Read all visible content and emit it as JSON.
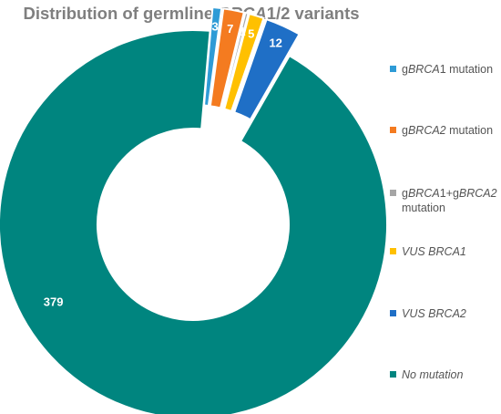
{
  "chart_data": {
    "type": "pie",
    "title": "Distribution of germline BRCA1/2 variants",
    "title_parts": [
      {
        "text": "Distribution of germline ",
        "italic": false
      },
      {
        "text": "BRCA",
        "italic": true
      },
      {
        "text": "1/2 variants",
        "italic": false
      }
    ],
    "style": "donut",
    "legend_position": "right",
    "series": [
      {
        "label": "gBRCA1 mutation",
        "value": 3,
        "color": "#2e9bd6",
        "exploded": true,
        "label_parts": [
          {
            "text": "g",
            "italic": false
          },
          {
            "text": "BRCA",
            "italic": true
          },
          {
            "text": "1 mutation",
            "italic": false
          }
        ]
      },
      {
        "label": "gBRCA2 mutation",
        "value": 7,
        "color": "#f47b20",
        "exploded": true,
        "label_parts": [
          {
            "text": "g",
            "italic": false
          },
          {
            "text": "BRCA2",
            "italic": true
          },
          {
            "text": " mutation",
            "italic": false
          }
        ]
      },
      {
        "label": "gBRCA1+gBRCA2 mutation",
        "value": 1,
        "color": "#a5a5a5",
        "exploded": true,
        "label_parts": [
          {
            "text": "g",
            "italic": false
          },
          {
            "text": "BRCA",
            "italic": true
          },
          {
            "text": "1+g",
            "italic": false
          },
          {
            "text": "BRCA2",
            "italic": true
          },
          {
            "text": " mutation",
            "italic": false
          }
        ]
      },
      {
        "label": "VUS BRCA1",
        "value": 5,
        "color": "#ffc000",
        "exploded": true,
        "label_parts": [
          {
            "text": "VUS BRCA1",
            "italic": true
          }
        ]
      },
      {
        "label": "VUS BRCA2",
        "value": 12,
        "color": "#1f6fc6",
        "exploded": true,
        "label_parts": [
          {
            "text": "VUS BRCA2",
            "italic": true
          }
        ]
      },
      {
        "label": "No mutation",
        "value": 379,
        "color": "#00857f",
        "exploded": false,
        "label_parts": [
          {
            "text": "No mutation",
            "italic": true
          }
        ]
      }
    ]
  }
}
